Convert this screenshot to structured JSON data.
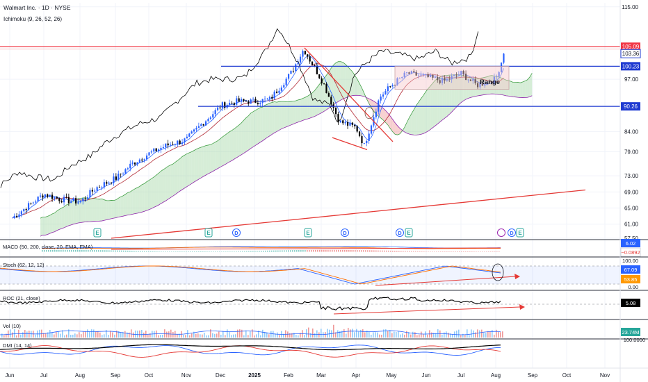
{
  "header": {
    "title": "Walmart Inc. · 1D · NYSE",
    "indicator": "Ichimoku (9, 26, 52, 26)"
  },
  "colors": {
    "up": "#2962ff",
    "down": "#000000",
    "conversion": "#2962ff",
    "base": "#b22833",
    "lagging": "#000000",
    "leading_a": "#43a047",
    "leading_b": "#8e24aa",
    "cloud_bull": "#a5d6a7",
    "cloud_bear": "#ef9a9a",
    "resistance_red": "#f23645",
    "level_blue": "#1e3ad1",
    "trend_red": "#e53935"
  },
  "price_axis": {
    "ticks": [
      "115.00",
      "97.00",
      "84.00",
      "79.00",
      "73.00",
      "69.00",
      "65.00",
      "61.00",
      "57.50"
    ],
    "labels": [
      {
        "text": "105.09",
        "kind": "red"
      },
      {
        "text": "103.36",
        "kind": "outline"
      },
      {
        "text": "100.23",
        "kind": "blue"
      },
      {
        "text": "90.26",
        "kind": "blue"
      }
    ]
  },
  "annotations": {
    "range_label": "Range"
  },
  "event_markers": [
    "E",
    "E",
    "D",
    "E",
    "D",
    "D",
    "E",
    "D",
    "E"
  ],
  "panes": {
    "macd": {
      "title": "MACD (50, 200, close, 20, EMA, EMA)",
      "values": [
        "6.02",
        "−0.0892"
      ]
    },
    "stoch": {
      "title": "Stoch (62, 12, 12)",
      "ticks": [
        "100.00",
        "0.00"
      ],
      "values": [
        "67.09",
        "53.85"
      ]
    },
    "roc": {
      "title": "ROC (21, close)",
      "value": "5.08"
    },
    "vol": {
      "title": "Vol (10)",
      "value": "23.74M"
    },
    "dmi": {
      "title": "DMI (14, 14)",
      "tick": "100.0000"
    }
  },
  "time_axis": [
    "Jun",
    "Jul",
    "Aug",
    "Sep",
    "Oct",
    "Nov",
    "Dec",
    "2025",
    "Feb",
    "Mar",
    "Apr",
    "May",
    "Jun",
    "Jul",
    "Aug",
    "Sep",
    "Oct",
    "Nov"
  ],
  "chart_data": {
    "type": "line",
    "title": "Walmart Inc. · 1D · NYSE",
    "xlabel": "",
    "ylabel": "",
    "x": [
      "2024-06-03",
      "2024-06-17",
      "2024-07-01",
      "2024-07-15",
      "2024-08-01",
      "2024-08-15",
      "2024-09-02",
      "2024-09-16",
      "2024-10-01",
      "2024-10-15",
      "2024-11-01",
      "2024-11-15",
      "2024-12-02",
      "2024-12-16",
      "2025-01-02",
      "2025-01-15",
      "2025-02-03",
      "2025-02-14",
      "2025-03-03",
      "2025-03-17",
      "2025-04-01",
      "2025-04-08",
      "2025-04-21",
      "2025-05-01",
      "2025-05-15",
      "2025-06-02",
      "2025-06-16",
      "2025-07-01",
      "2025-07-15",
      "2025-08-01",
      "2025-08-08"
    ],
    "series": [
      {
        "values": [
          62.5,
          65.5,
          68.5,
          67.2,
          66.5,
          70.0,
          72.5,
          76.0,
          78.5,
          80.5,
          82.0,
          86.0,
          90.5,
          91.5,
          91.5,
          92.0,
          98.5,
          104.5,
          96.0,
          86.5,
          85.0,
          80.5,
          92.5,
          95.5,
          98.5,
          97.5,
          96.5,
          98.5,
          95.5,
          97.0,
          103.36
        ]
      }
    ],
    "ylim": [
      57.5,
      116
    ],
    "levels": [
      105.09,
      103.36,
      100.23,
      90.26
    ],
    "range_box": [
      94.5,
      100.2
    ],
    "indicators": {
      "macd": [
        6.02,
        -0.0892
      ],
      "stoch": [
        67.09,
        53.85
      ],
      "roc": 5.08,
      "volume": "23.74M"
    }
  }
}
